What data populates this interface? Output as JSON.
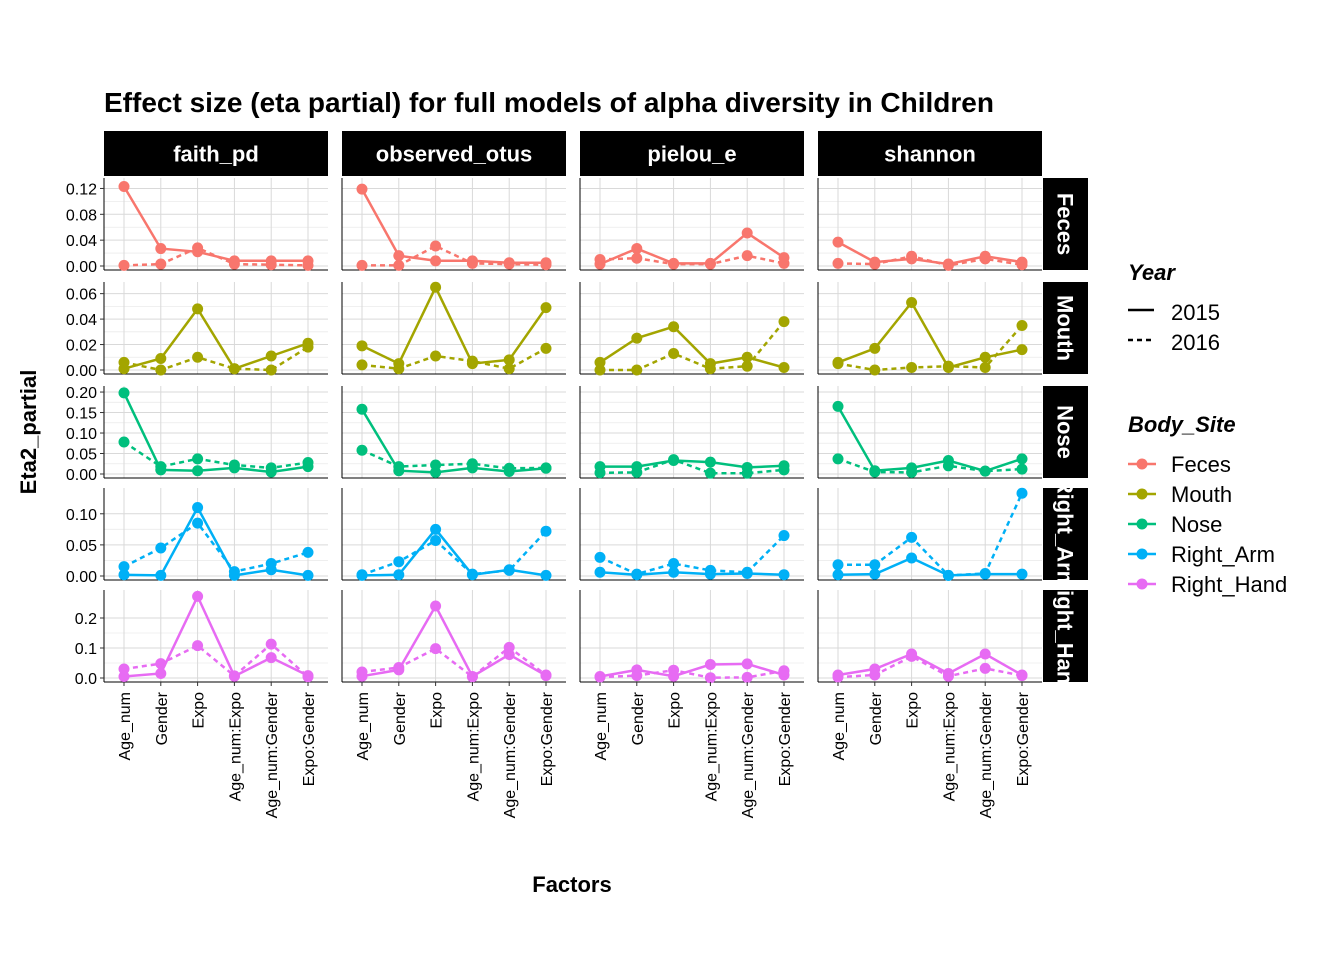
{
  "chart_data": {
    "type": "line",
    "title": "Effect size (eta partial) for full models of alpha diversity in Children",
    "xlabel": "Factors",
    "ylabel": "Eta2_partial",
    "categories": [
      "Age_num",
      "Gender",
      "Expo",
      "Age_num:Expo",
      "Age_num:Gender",
      "Expo:Gender"
    ],
    "metrics": [
      "faith_pd",
      "observed_otus",
      "pielou_e",
      "shannon"
    ],
    "body_sites": [
      {
        "name": "Feces",
        "strip_label": "Feces",
        "color": "#F8766D",
        "ylim": [
          0,
          0.13
        ],
        "ticks": [
          0.0,
          0.04,
          0.08,
          0.12
        ],
        "tick_labels": [
          "0.00",
          "0.04",
          "0.08",
          "0.12"
        ]
      },
      {
        "name": "Mouth",
        "strip_label": "Mouth",
        "color": "#A3A500",
        "ylim": [
          0,
          0.066
        ],
        "ticks": [
          0.0,
          0.02,
          0.04,
          0.06
        ],
        "tick_labels": [
          "0.00",
          "0.02",
          "0.04",
          "0.06"
        ]
      },
      {
        "name": "Nose",
        "strip_label": "Nose",
        "color": "#00BF7D",
        "ylim": [
          0,
          0.205
        ],
        "ticks": [
          0.0,
          0.05,
          0.1,
          0.15,
          0.2
        ],
        "tick_labels": [
          "0.00",
          "0.05",
          "0.10",
          "0.15",
          "0.20"
        ]
      },
      {
        "name": "Right_Arm",
        "strip_label": "Right_Arm",
        "color": "#00B0F6",
        "ylim": [
          0,
          0.135
        ],
        "ticks": [
          0.0,
          0.05,
          0.1
        ],
        "tick_labels": [
          "0.00",
          "0.05",
          "0.10"
        ]
      },
      {
        "name": "Right_Hand",
        "strip_label": "Right_Hand",
        "color": "#E76BF3",
        "ylim": [
          0,
          0.28
        ],
        "ticks": [
          0.0,
          0.1,
          0.2
        ],
        "tick_labels": [
          "0.0",
          "0.1",
          "0.2"
        ]
      }
    ],
    "series": [
      {
        "site": "Feces",
        "metric": "faith_pd",
        "year": "2015",
        "values": [
          0.123,
          0.027,
          0.022,
          0.008,
          0.008,
          0.008
        ]
      },
      {
        "site": "Feces",
        "metric": "faith_pd",
        "year": "2016",
        "values": [
          0.001,
          0.003,
          0.028,
          0.003,
          0.002,
          0.001
        ]
      },
      {
        "site": "Feces",
        "metric": "observed_otus",
        "year": "2015",
        "values": [
          0.119,
          0.016,
          0.008,
          0.008,
          0.005,
          0.005
        ]
      },
      {
        "site": "Feces",
        "metric": "observed_otus",
        "year": "2016",
        "values": [
          0.001,
          0.001,
          0.031,
          0.004,
          0.003,
          0.002
        ]
      },
      {
        "site": "Feces",
        "metric": "pielou_e",
        "year": "2015",
        "values": [
          0.003,
          0.027,
          0.004,
          0.004,
          0.051,
          0.013
        ]
      },
      {
        "site": "Feces",
        "metric": "pielou_e",
        "year": "2016",
        "values": [
          0.01,
          0.012,
          0.003,
          0.003,
          0.016,
          0.004
        ]
      },
      {
        "site": "Feces",
        "metric": "shannon",
        "year": "2015",
        "values": [
          0.037,
          0.006,
          0.011,
          0.003,
          0.015,
          0.006
        ]
      },
      {
        "site": "Feces",
        "metric": "shannon",
        "year": "2016",
        "values": [
          0.004,
          0.003,
          0.015,
          0.001,
          0.011,
          0.002
        ]
      },
      {
        "site": "Mouth",
        "metric": "faith_pd",
        "year": "2015",
        "values": [
          0.001,
          0.009,
          0.048,
          0.001,
          0.011,
          0.021
        ]
      },
      {
        "site": "Mouth",
        "metric": "faith_pd",
        "year": "2016",
        "values": [
          0.006,
          0.0,
          0.01,
          0.001,
          0.0,
          0.018
        ]
      },
      {
        "site": "Mouth",
        "metric": "observed_otus",
        "year": "2015",
        "values": [
          0.019,
          0.005,
          0.065,
          0.005,
          0.008,
          0.049
        ]
      },
      {
        "site": "Mouth",
        "metric": "observed_otus",
        "year": "2016",
        "values": [
          0.004,
          0.001,
          0.011,
          0.007,
          0.001,
          0.017
        ]
      },
      {
        "site": "Mouth",
        "metric": "pielou_e",
        "year": "2015",
        "values": [
          0.006,
          0.025,
          0.034,
          0.005,
          0.01,
          0.002
        ]
      },
      {
        "site": "Mouth",
        "metric": "pielou_e",
        "year": "2016",
        "values": [
          0.0,
          0.0,
          0.013,
          0.001,
          0.003,
          0.038
        ]
      },
      {
        "site": "Mouth",
        "metric": "shannon",
        "year": "2015",
        "values": [
          0.006,
          0.017,
          0.053,
          0.002,
          0.01,
          0.016
        ]
      },
      {
        "site": "Mouth",
        "metric": "shannon",
        "year": "2016",
        "values": [
          0.005,
          0.0,
          0.002,
          0.003,
          0.002,
          0.035
        ]
      },
      {
        "site": "Nose",
        "metric": "faith_pd",
        "year": "2015",
        "values": [
          0.198,
          0.01,
          0.008,
          0.015,
          0.005,
          0.018
        ]
      },
      {
        "site": "Nose",
        "metric": "faith_pd",
        "year": "2016",
        "values": [
          0.078,
          0.018,
          0.037,
          0.022,
          0.015,
          0.028
        ]
      },
      {
        "site": "Nose",
        "metric": "observed_otus",
        "year": "2015",
        "values": [
          0.158,
          0.008,
          0.004,
          0.015,
          0.006,
          0.014
        ]
      },
      {
        "site": "Nose",
        "metric": "observed_otus",
        "year": "2016",
        "values": [
          0.058,
          0.018,
          0.022,
          0.025,
          0.014,
          0.015
        ]
      },
      {
        "site": "Nose",
        "metric": "pielou_e",
        "year": "2015",
        "values": [
          0.018,
          0.018,
          0.033,
          0.029,
          0.016,
          0.02
        ]
      },
      {
        "site": "Nose",
        "metric": "pielou_e",
        "year": "2016",
        "values": [
          0.003,
          0.004,
          0.035,
          0.002,
          0.002,
          0.01
        ]
      },
      {
        "site": "Nose",
        "metric": "shannon",
        "year": "2015",
        "values": [
          0.165,
          0.008,
          0.015,
          0.033,
          0.007,
          0.037
        ]
      },
      {
        "site": "Nose",
        "metric": "shannon",
        "year": "2016",
        "values": [
          0.037,
          0.005,
          0.004,
          0.02,
          0.007,
          0.012
        ]
      },
      {
        "site": "Right_Arm",
        "metric": "faith_pd",
        "year": "2015",
        "values": [
          0.002,
          0.001,
          0.11,
          0.001,
          0.01,
          0.001
        ]
      },
      {
        "site": "Right_Arm",
        "metric": "faith_pd",
        "year": "2016",
        "values": [
          0.015,
          0.045,
          0.085,
          0.007,
          0.02,
          0.038
        ]
      },
      {
        "site": "Right_Arm",
        "metric": "observed_otus",
        "year": "2015",
        "values": [
          0.001,
          0.002,
          0.075,
          0.002,
          0.01,
          0.001
        ]
      },
      {
        "site": "Right_Arm",
        "metric": "observed_otus",
        "year": "2016",
        "values": [
          0.002,
          0.023,
          0.057,
          0.003,
          0.009,
          0.072
        ]
      },
      {
        "site": "Right_Arm",
        "metric": "pielou_e",
        "year": "2015",
        "values": [
          0.006,
          0.002,
          0.006,
          0.003,
          0.004,
          0.002
        ]
      },
      {
        "site": "Right_Arm",
        "metric": "pielou_e",
        "year": "2016",
        "values": [
          0.03,
          0.003,
          0.02,
          0.009,
          0.006,
          0.065
        ]
      },
      {
        "site": "Right_Arm",
        "metric": "shannon",
        "year": "2015",
        "values": [
          0.002,
          0.003,
          0.029,
          0.001,
          0.003,
          0.003
        ]
      },
      {
        "site": "Right_Arm",
        "metric": "shannon",
        "year": "2016",
        "values": [
          0.018,
          0.018,
          0.062,
          0.001,
          0.004,
          0.133
        ]
      },
      {
        "site": "Right_Hand",
        "metric": "faith_pd",
        "year": "2015",
        "values": [
          0.005,
          0.015,
          0.272,
          0.006,
          0.068,
          0.008
        ]
      },
      {
        "site": "Right_Hand",
        "metric": "faith_pd",
        "year": "2016",
        "values": [
          0.03,
          0.048,
          0.108,
          0.007,
          0.113,
          0.004
        ]
      },
      {
        "site": "Right_Hand",
        "metric": "observed_otus",
        "year": "2015",
        "values": [
          0.006,
          0.027,
          0.24,
          0.005,
          0.078,
          0.008
        ]
      },
      {
        "site": "Right_Hand",
        "metric": "observed_otus",
        "year": "2016",
        "values": [
          0.02,
          0.035,
          0.098,
          0.004,
          0.102,
          0.01
        ]
      },
      {
        "site": "Right_Hand",
        "metric": "pielou_e",
        "year": "2015",
        "values": [
          0.005,
          0.027,
          0.006,
          0.045,
          0.047,
          0.01
        ]
      },
      {
        "site": "Right_Hand",
        "metric": "pielou_e",
        "year": "2016",
        "values": [
          0.003,
          0.008,
          0.026,
          0.001,
          0.002,
          0.024
        ]
      },
      {
        "site": "Right_Hand",
        "metric": "shannon",
        "year": "2015",
        "values": [
          0.01,
          0.03,
          0.08,
          0.015,
          0.08,
          0.01
        ]
      },
      {
        "site": "Right_Hand",
        "metric": "shannon",
        "year": "2016",
        "values": [
          0.003,
          0.01,
          0.072,
          0.006,
          0.032,
          0.008
        ]
      }
    ],
    "legend": {
      "placement": "right",
      "year_title": "Year",
      "year_entries": [
        {
          "label": "2015",
          "linetype": "solid"
        },
        {
          "label": "2016",
          "linetype": "dashed"
        }
      ],
      "site_title": "Body_Site",
      "site_entries": [
        "Feces",
        "Mouth",
        "Nose",
        "Right_Arm",
        "Right_Hand"
      ]
    },
    "grid": true,
    "background": "#ffffff",
    "strip_fill": "#000000",
    "grid_color": "#d9d9d9"
  }
}
